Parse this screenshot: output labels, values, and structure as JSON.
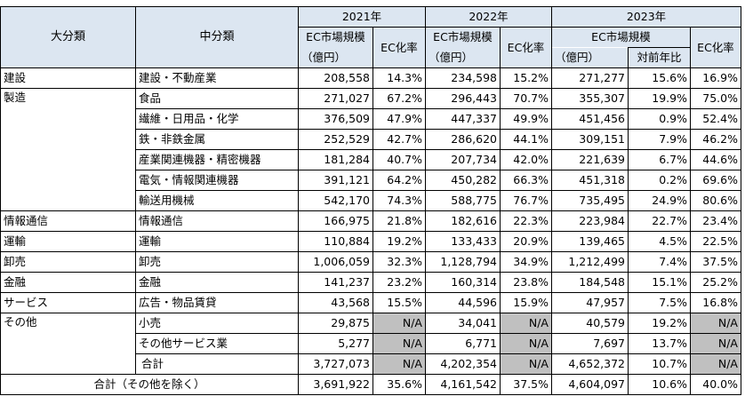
{
  "header": {
    "major": "大分類",
    "mid": "中分類",
    "years": [
      "2021年",
      "2022年",
      "2023年"
    ],
    "ec_size": "EC市場規模",
    "ec_rate": "EC化率",
    "unit": "（億円）",
    "yoy": "対前年比"
  },
  "rows": [
    {
      "major": "建設",
      "mid": "建設・不動産業",
      "v21": "208,558",
      "r21": "14.3%",
      "v22": "234,598",
      "r22": "15.2%",
      "v23": "271,277",
      "y23": "15.6%",
      "r23": "16.9%"
    },
    {
      "major": "製造",
      "mid": "食品",
      "v21": "271,027",
      "r21": "67.2%",
      "v22": "296,443",
      "r22": "70.7%",
      "v23": "355,307",
      "y23": "19.9%",
      "r23": "75.0%"
    },
    {
      "major": "",
      "mid": "繊維・日用品・化学",
      "v21": "376,509",
      "r21": "47.9%",
      "v22": "447,337",
      "r22": "49.9%",
      "v23": "451,456",
      "y23": "0.9%",
      "r23": "52.4%"
    },
    {
      "major": "",
      "mid": "鉄・非鉄金属",
      "v21": "252,529",
      "r21": "42.7%",
      "v22": "286,620",
      "r22": "44.1%",
      "v23": "309,151",
      "y23": "7.9%",
      "r23": "46.2%"
    },
    {
      "major": "",
      "mid": "産業関連機器・精密機器",
      "v21": "181,284",
      "r21": "40.7%",
      "v22": "207,734",
      "r22": "42.0%",
      "v23": "221,639",
      "y23": "6.7%",
      "r23": "44.6%"
    },
    {
      "major": "",
      "mid": "電気・情報関連機器",
      "v21": "391,121",
      "r21": "64.2%",
      "v22": "450,282",
      "r22": "66.3%",
      "v23": "451,318",
      "y23": "0.2%",
      "r23": "69.6%"
    },
    {
      "major": "",
      "mid": "輸送用機械",
      "v21": "542,170",
      "r21": "74.3%",
      "v22": "588,775",
      "r22": "76.7%",
      "v23": "735,495",
      "y23": "24.9%",
      "r23": "80.6%"
    },
    {
      "major": "情報通信",
      "mid": "情報通信",
      "v21": "166,975",
      "r21": "21.8%",
      "v22": "182,616",
      "r22": "22.3%",
      "v23": "223,984",
      "y23": "22.7%",
      "r23": "23.4%"
    },
    {
      "major": "運輸",
      "mid": "運輸",
      "v21": "110,884",
      "r21": "19.2%",
      "v22": "133,433",
      "r22": "20.9%",
      "v23": "139,465",
      "y23": "4.5%",
      "r23": "22.5%"
    },
    {
      "major": "卸売",
      "mid": "卸売",
      "v21": "1,006,059",
      "r21": "32.3%",
      "v22": "1,128,794",
      "r22": "34.9%",
      "v23": "1,212,499",
      "y23": "7.4%",
      "r23": "37.5%"
    },
    {
      "major": "金融",
      "mid": "金融",
      "v21": "141,237",
      "r21": "23.2%",
      "v22": "160,314",
      "r22": "23.8%",
      "v23": "184,548",
      "y23": "15.1%",
      "r23": "25.2%"
    },
    {
      "major": "サービス",
      "mid": "広告・物品賃貸",
      "v21": "43,568",
      "r21": "15.5%",
      "v22": "44,596",
      "r22": "15.9%",
      "v23": "47,957",
      "y23": "7.5%",
      "r23": "16.8%"
    },
    {
      "major": "その他",
      "mid": "小売",
      "v21": "29,875",
      "r21": "N/A",
      "v22": "34,041",
      "r22": "N/A",
      "v23": "40,579",
      "y23": "19.2%",
      "r23": "N/A"
    },
    {
      "major": "",
      "mid": "その他サービス業",
      "v21": "5,277",
      "r21": "N/A",
      "v22": "6,771",
      "r22": "N/A",
      "v23": "7,697",
      "y23": "13.7%",
      "r23": "N/A"
    }
  ],
  "total": {
    "label": "合計",
    "v21": "3,727,073",
    "r21": "N/A",
    "v22": "4,202,354",
    "r22": "N/A",
    "v23": "4,652,372",
    "y23": "10.7%",
    "r23": "N/A"
  },
  "grand_total": {
    "label": "合計（その他を除く）",
    "v21": "3,691,922",
    "r21": "35.6%",
    "v22": "4,161,542",
    "r22": "37.5%",
    "v23": "4,604,097",
    "y23": "10.6%",
    "r23": "40.0%"
  }
}
